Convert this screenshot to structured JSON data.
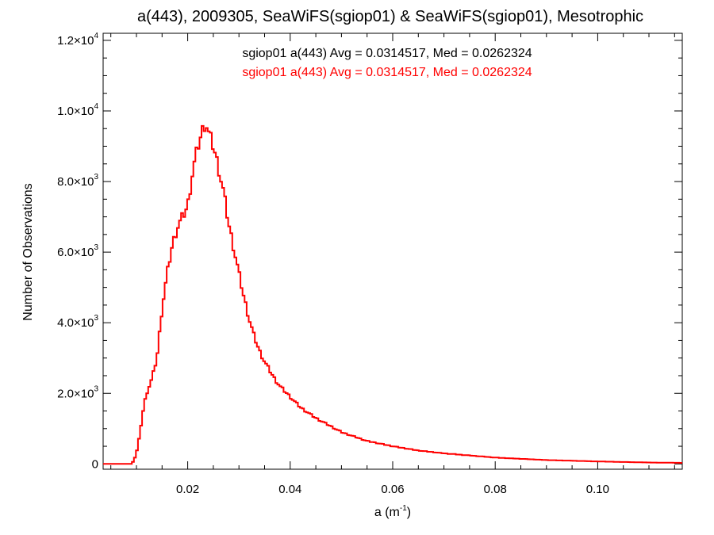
{
  "chart_data": {
    "type": "histogram",
    "title": "a(443), 2009305, SeaWiFS(sgiop01) & SeaWiFS(sgiop01), Mesotrophic",
    "xlabel": {
      "base": "a (m",
      "sup": "-1",
      "end": ")"
    },
    "ylabel": "Number of Observations",
    "xlim": [
      0.0035,
      0.1165
    ],
    "ylim": [
      -150,
      12200
    ],
    "x_ticks": [
      {
        "value": 0.02,
        "label": "0.02"
      },
      {
        "value": 0.04,
        "label": "0.04"
      },
      {
        "value": 0.06,
        "label": "0.06"
      },
      {
        "value": 0.08,
        "label": "0.08"
      },
      {
        "value": 0.1,
        "label": "0.10"
      }
    ],
    "y_ticks": [
      {
        "value": 0,
        "mant": "0",
        "exp": ""
      },
      {
        "value": 2000,
        "mant": "2.0×10",
        "exp": "3"
      },
      {
        "value": 4000,
        "mant": "4.0×10",
        "exp": "3"
      },
      {
        "value": 6000,
        "mant": "6.0×10",
        "exp": "3"
      },
      {
        "value": 8000,
        "mant": "8.0×10",
        "exp": "3"
      },
      {
        "value": 10000,
        "mant": "1.0×10",
        "exp": "4"
      },
      {
        "value": 12000,
        "mant": "1.2×10",
        "exp": "4"
      }
    ],
    "annotations": [
      {
        "text": "sgiop01 a(443) Avg = 0.0314517, Med = 0.0262324",
        "color": "#000000"
      },
      {
        "text": "sgiop01 a(443) Avg = 0.0314517, Med = 0.0262324",
        "color": "#ff0000"
      }
    ],
    "series": [
      {
        "color": "#ff0000",
        "x": [
          0.0035,
          0.009,
          0.0095,
          0.01,
          0.0105,
          0.011,
          0.0115,
          0.012,
          0.013,
          0.014,
          0.015,
          0.016,
          0.017,
          0.018,
          0.019,
          0.02,
          0.021,
          0.022,
          0.023,
          0.0235,
          0.024,
          0.025,
          0.026,
          0.027,
          0.028,
          0.029,
          0.03,
          0.031,
          0.032,
          0.033,
          0.034,
          0.035,
          0.036,
          0.037,
          0.038,
          0.04,
          0.042,
          0.045,
          0.05,
          0.055,
          0.06,
          0.065,
          0.07,
          0.08,
          0.09,
          0.1,
          0.11,
          0.1165
        ],
        "y": [
          0,
          0,
          100,
          300,
          700,
          1200,
          1700,
          2000,
          2400,
          3000,
          4400,
          5400,
          6200,
          6700,
          7000,
          7300,
          8300,
          9000,
          9500,
          9700,
          9400,
          9000,
          8400,
          7700,
          6800,
          6100,
          5400,
          4700,
          4100,
          3600,
          3200,
          2900,
          2650,
          2400,
          2200,
          1900,
          1600,
          1300,
          900,
          650,
          500,
          380,
          300,
          180,
          110,
          70,
          40,
          30
        ]
      }
    ]
  }
}
